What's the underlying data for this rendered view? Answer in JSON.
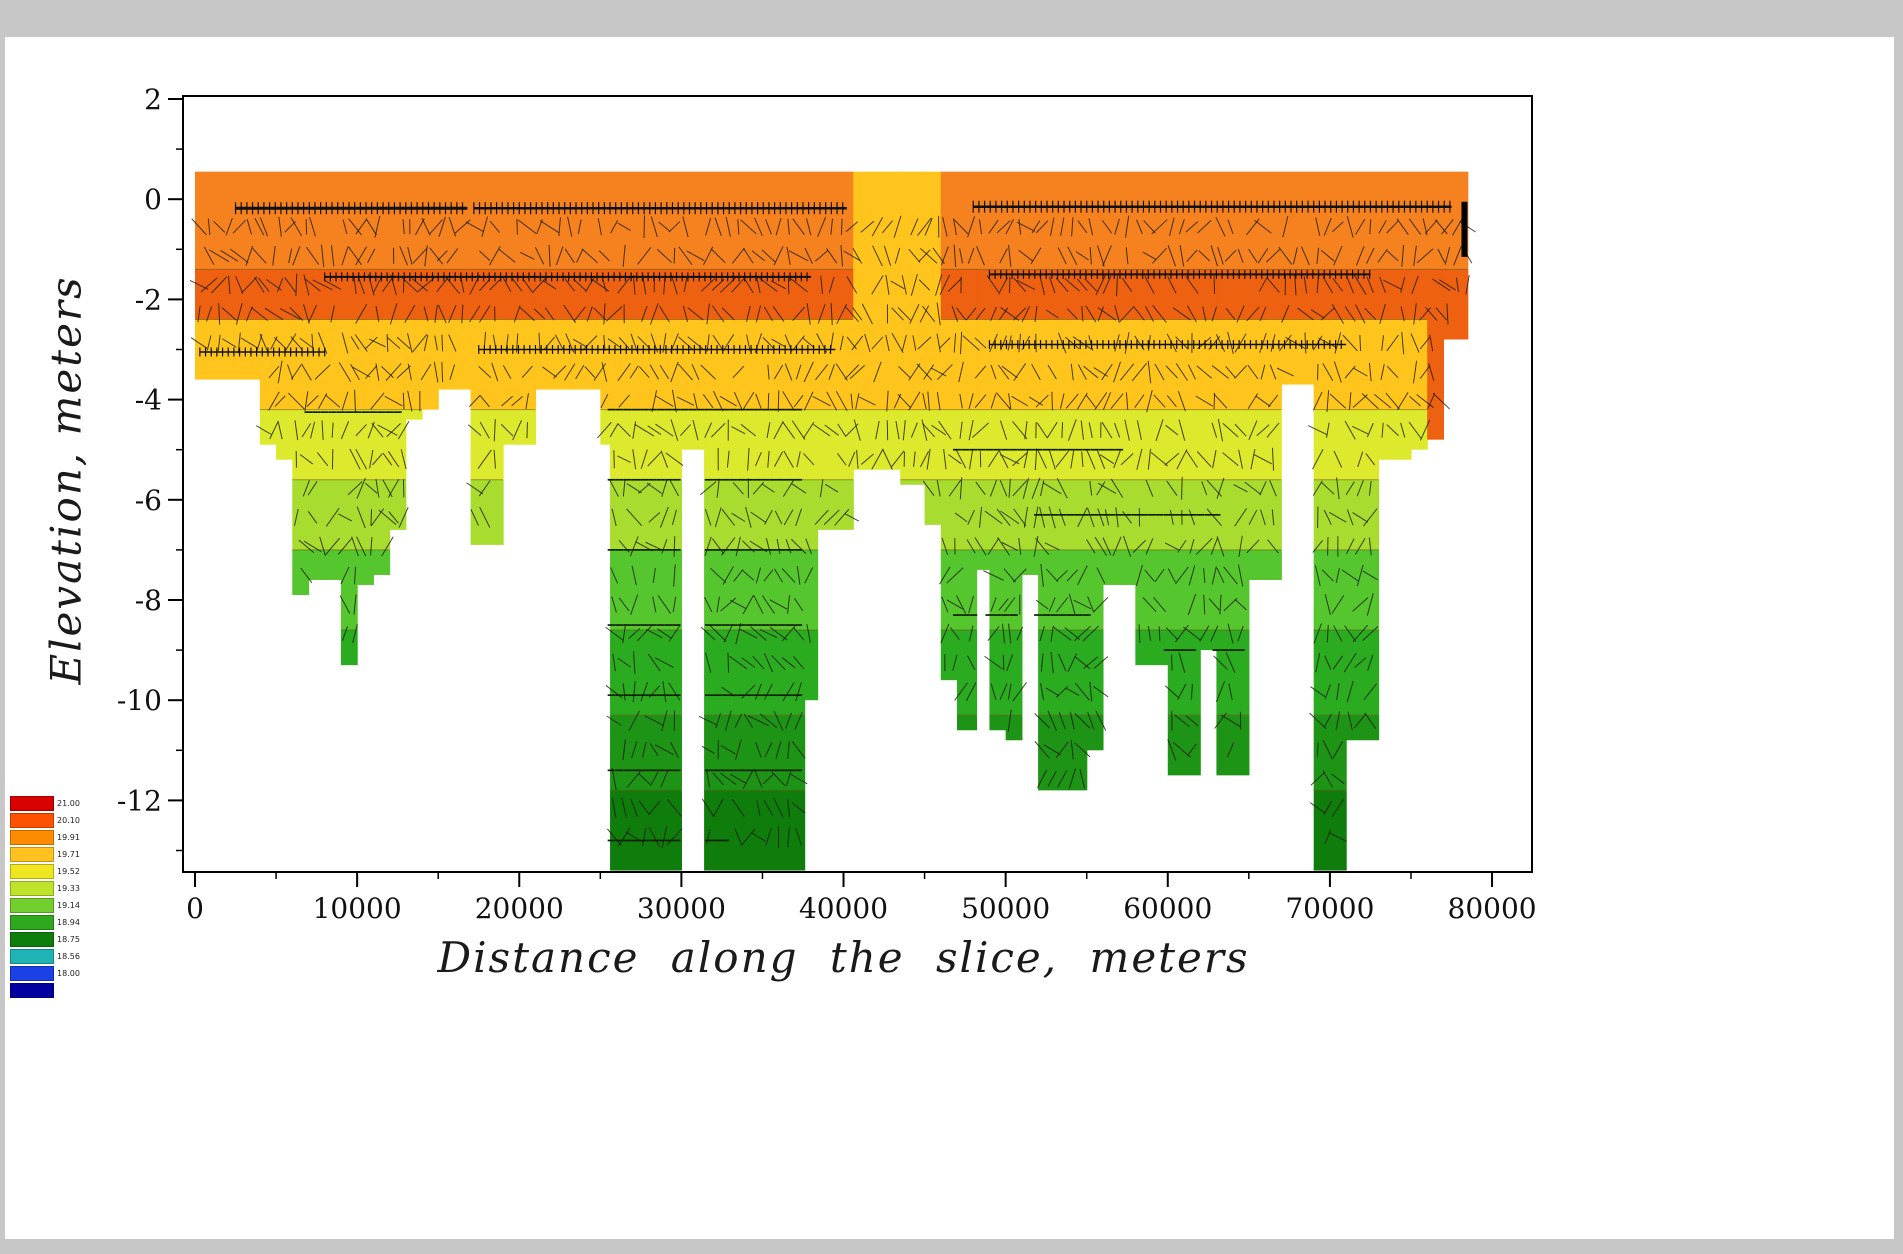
{
  "window": {
    "background": "#c7c7c7",
    "page_background": "#ffffff"
  },
  "chart_data": {
    "type": "heatmap",
    "subtype": "filled-contour-cross-section-with-velocity-vectors",
    "title": "",
    "xlabel": "Distance along the slice, meters",
    "ylabel": "Elevation, meters",
    "xlim": [
      0,
      80000
    ],
    "ylim": [
      -13.4,
      2
    ],
    "grid": false,
    "legend_position": "bottom-left",
    "data_top": 0.55,
    "x_ticks": [
      0,
      10000,
      20000,
      30000,
      40000,
      50000,
      60000,
      70000,
      80000
    ],
    "x_minor_ticks": [
      5000,
      15000,
      25000,
      35000,
      45000,
      55000,
      65000,
      75000
    ],
    "y_ticks": [
      2,
      0,
      -2,
      -4,
      -6,
      -8,
      -10,
      -12
    ],
    "y_minor_ticks": [
      1,
      -1,
      -3,
      -5,
      -7,
      -9,
      -11,
      -13
    ],
    "surface_yellow_zone": [
      40.3,
      46.6
    ],
    "bands": [
      {
        "id": "A",
        "color": "#F5821E",
        "top": 0.55,
        "bottom": -1.4,
        "legend_value": "19.91"
      },
      {
        "id": "B",
        "color": "#EE6110",
        "top": -1.4,
        "bottom": -2.4,
        "legend_value": "20.10"
      },
      {
        "id": "C",
        "color": "#FFC51C",
        "top": -2.4,
        "bottom": -4.2,
        "legend_value": "19.71"
      },
      {
        "id": "D",
        "color": "#DCE92C",
        "top": -4.2,
        "bottom": -5.6,
        "legend_value": "19.52"
      },
      {
        "id": "E",
        "color": "#A8DC2F",
        "top": -5.6,
        "bottom": -7.0,
        "legend_value": "19.33"
      },
      {
        "id": "F",
        "color": "#55C62D",
        "top": -7.0,
        "bottom": -8.6,
        "legend_value": "19.14"
      },
      {
        "id": "G",
        "color": "#2BAB1F",
        "top": -8.6,
        "bottom": -10.3,
        "legend_value": "18.94"
      },
      {
        "id": "H",
        "color": "#1D9415",
        "top": -10.3,
        "bottom": -11.8,
        "legend_value": "18.75"
      },
      {
        "id": "I",
        "color": "#0F7D0B",
        "top": -11.8,
        "bottom": -13.4,
        "legend_value": "18.75"
      }
    ],
    "band_boundaries": [
      -1.4,
      -2.4,
      -4.2,
      -5.6,
      -7.0,
      -8.6,
      -10.3,
      -11.8
    ],
    "columns": [
      [
        0,
        4,
        -3.6
      ],
      [
        4,
        5,
        -4.9
      ],
      [
        5,
        6,
        -5.2
      ],
      [
        6,
        7,
        -7.9
      ],
      [
        7,
        9,
        -7.6
      ],
      [
        9,
        10,
        -9.3
      ],
      [
        10,
        11,
        -7.7
      ],
      [
        11,
        12,
        -7.5
      ],
      [
        12,
        13,
        -6.6
      ],
      [
        13,
        14,
        -4.4
      ],
      [
        14,
        15,
        -4.2
      ],
      [
        15,
        17,
        -3.8
      ],
      [
        17,
        19,
        -6.9
      ],
      [
        19,
        21,
        -4.9
      ],
      [
        21,
        25,
        -3.8
      ],
      [
        25,
        25.6,
        -4.9
      ],
      [
        25.6,
        30,
        -13.4
      ],
      [
        30,
        31.4,
        -5.0
      ],
      [
        31.4,
        37.6,
        -13.4
      ],
      [
        37.6,
        38.4,
        -10.0
      ],
      [
        38.4,
        40.6,
        -6.6
      ],
      [
        40.6,
        43.5,
        -5.4
      ],
      [
        43.5,
        45,
        -5.7
      ],
      [
        45,
        46,
        -6.5
      ],
      [
        46,
        47,
        -9.6
      ],
      [
        47,
        48.2,
        -10.6
      ],
      [
        48.2,
        49,
        -7.4
      ],
      [
        49,
        50,
        -10.6
      ],
      [
        50,
        51,
        -10.8
      ],
      [
        51,
        52,
        -7.5
      ],
      [
        52,
        55,
        -11.8
      ],
      [
        55,
        56,
        -11.0
      ],
      [
        56,
        58,
        -7.7
      ],
      [
        58,
        60,
        -9.3
      ],
      [
        60,
        62,
        -11.5
      ],
      [
        62,
        63,
        -9.0
      ],
      [
        63,
        65,
        -11.5
      ],
      [
        65,
        67,
        -7.6
      ],
      [
        67,
        69,
        -3.7
      ],
      [
        69,
        71,
        -13.4
      ],
      [
        71,
        73,
        -10.8
      ],
      [
        73,
        75,
        -5.2
      ],
      [
        75,
        76,
        -5.0
      ],
      [
        76,
        77,
        -4.8,
        "OD"
      ],
      [
        77,
        78.5,
        -2.8,
        "OD"
      ]
    ],
    "overlays": {
      "hatched_lines": [
        [
          -0.18,
          2.5,
          16.8,
          3
        ],
        [
          -0.18,
          17.2,
          40.2,
          2.5
        ],
        [
          -0.15,
          48,
          77.5,
          2.5
        ],
        [
          -1.55,
          8,
          38,
          2
        ],
        [
          -1.5,
          49,
          72.5,
          2
        ],
        [
          -3.05,
          0.3,
          8,
          1.5
        ],
        [
          -3.0,
          17.5,
          39.5,
          1.5
        ],
        [
          -2.9,
          49,
          71,
          1.5
        ]
      ],
      "arrow_rows": [
        [
          -4.25,
          7,
          13.5
        ],
        [
          -4.2,
          25.7,
          37.6
        ],
        [
          -5.6,
          25.7,
          37.6
        ],
        [
          -7.0,
          25.7,
          37.6
        ],
        [
          -8.5,
          25.7,
          37.6
        ],
        [
          -9.9,
          25.7,
          37.6
        ],
        [
          -11.4,
          25.7,
          37.6
        ],
        [
          -12.8,
          25.7,
          33
        ],
        [
          -5.0,
          47,
          57
        ],
        [
          -6.3,
          52,
          63
        ],
        [
          -8.3,
          47,
          55
        ],
        [
          -9.0,
          60,
          65
        ]
      ],
      "right_edge_bar": {
        "x_km": 78.3,
        "y0": -0.05,
        "y1": -1.15
      }
    },
    "legend": {
      "entries": [
        {
          "color": "#D90000",
          "label": "21.00"
        },
        {
          "color": "#FF5200",
          "label": "20.10"
        },
        {
          "color": "#FF8C00",
          "label": "19.91"
        },
        {
          "color": "#FFC21E",
          "label": "19.71"
        },
        {
          "color": "#EFE61F",
          "label": "19.52"
        },
        {
          "color": "#BFE22A",
          "label": "19.33"
        },
        {
          "color": "#73CF2E",
          "label": "19.14"
        },
        {
          "color": "#2EA81E",
          "label": "18.94"
        },
        {
          "color": "#0E7D0C",
          "label": "18.75"
        },
        {
          "color": "#1FB4B4",
          "label": "18.56"
        },
        {
          "color": "#1A40E6",
          "label": "18.00"
        },
        {
          "color": "#0000A0",
          "label": ""
        }
      ]
    }
  }
}
